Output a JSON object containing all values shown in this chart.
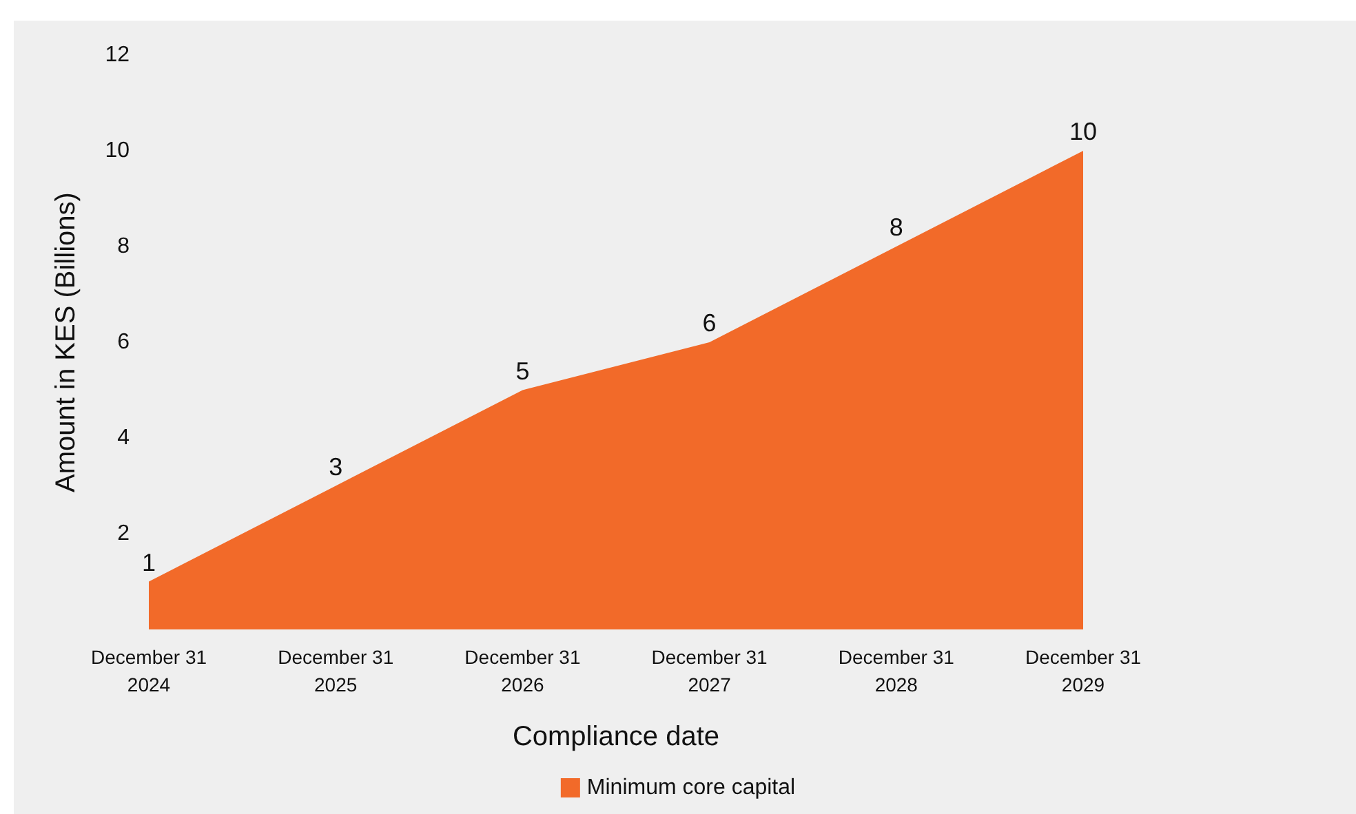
{
  "chart_data": {
    "type": "area",
    "xlabel": "Compliance date",
    "ylabel": "Amount in KES (Billions)",
    "categories": [
      "December 31\n2024",
      "December 31\n2025",
      "December 31\n2026",
      "December 31\n2027",
      "December 31\n2028",
      "December 31\n2029"
    ],
    "series": [
      {
        "name": "Minimum core capital",
        "color": "#f26a29",
        "values": [
          1,
          3,
          5,
          6,
          8,
          10
        ]
      }
    ],
    "ylim": [
      0,
      12
    ],
    "yticks": [
      2,
      4,
      6,
      8,
      10,
      12
    ],
    "grid": false,
    "legend": "bottom",
    "data_labels": true,
    "marker": "none"
  }
}
